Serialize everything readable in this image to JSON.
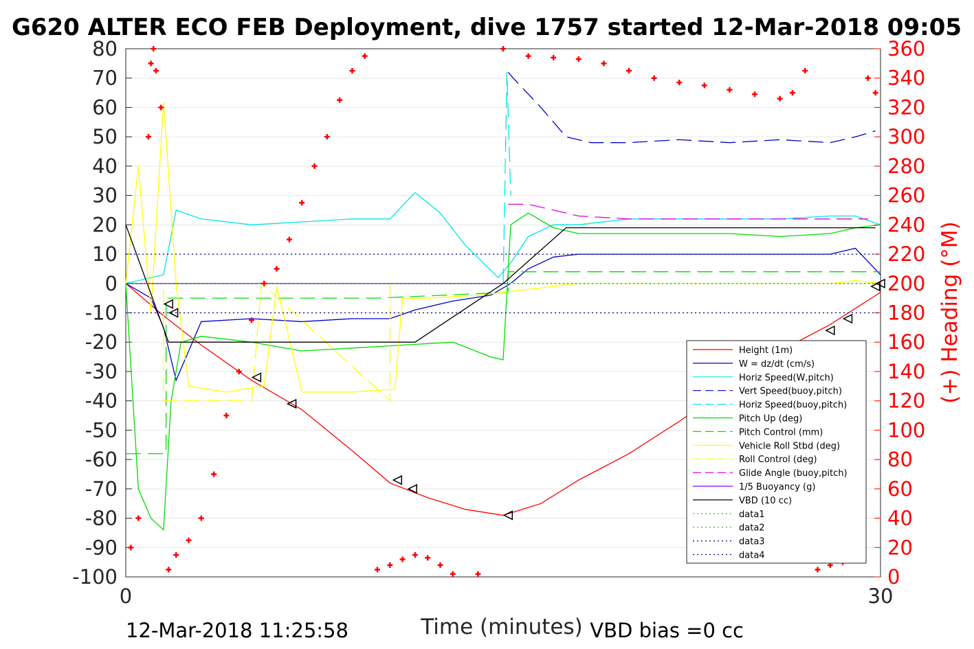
{
  "chart_data": {
    "type": "line",
    "title": "G620 ALTER ECO FEB Deployment, dive 1757 started 12-Mar-2018 09:05",
    "xlabel": "Time (minutes)",
    "ylabel_right": "(+) Heading (°M)",
    "xlim": [
      0,
      30
    ],
    "ylim": [
      -100,
      80
    ],
    "ylim_right": [
      0,
      360
    ],
    "x_ticks": [
      "0",
      "30"
    ],
    "y_ticks": [
      "80",
      "70",
      "60",
      "50",
      "40",
      "30",
      "20",
      "10",
      "0",
      "-10",
      "-20",
      "-30",
      "-40",
      "-50",
      "-60",
      "-70",
      "-80",
      "-90",
      "-100"
    ],
    "y_right_ticks": [
      "360",
      "340",
      "320",
      "300",
      "280",
      "260",
      "240",
      "220",
      "200",
      "180",
      "160",
      "140",
      "120",
      "100",
      "80",
      "60",
      "40",
      "20",
      "0"
    ],
    "grid": true,
    "legend_position": "lower-right",
    "footer_left": "12-Mar-2018 11:25:58",
    "footer_right": "VBD bias =0 cc",
    "series": [
      {
        "name": "Height (1m)",
        "color": "#ff0000",
        "style": "solid",
        "x": [
          0,
          1.5,
          3,
          5,
          7,
          9,
          10.5,
          12,
          13.5,
          15,
          16.5,
          18,
          20,
          22,
          24,
          26,
          28,
          30
        ],
        "y": [
          0,
          -11,
          -21,
          -33,
          -43,
          -57,
          -68,
          -73,
          -77,
          -79,
          -75,
          -67,
          -58,
          -47,
          -35,
          -23,
          -14,
          -3
        ]
      },
      {
        "name": "W = dz/dt (cm/s)",
        "color": "#0000cc",
        "style": "solid",
        "x": [
          0,
          1,
          1.5,
          2,
          3,
          5,
          7,
          9,
          10.5,
          11.5,
          13,
          14.5,
          15.3,
          16,
          17,
          18,
          20,
          22,
          24,
          26,
          28,
          29,
          30
        ],
        "y": [
          0,
          -5,
          -15,
          -33,
          -13,
          -12,
          -13,
          -12,
          -12,
          -9,
          -6,
          -4,
          0,
          5,
          9,
          10,
          10,
          10,
          10,
          10,
          10,
          12,
          3
        ]
      },
      {
        "name": "Horiz Speed(W,pitch)",
        "color": "#00e5e5",
        "style": "solid",
        "x": [
          0,
          1.5,
          2,
          3,
          5,
          7,
          9,
          10.5,
          11.5,
          12.5,
          13.5,
          14.8,
          15.3,
          16,
          17,
          18,
          20,
          22,
          24,
          26,
          28,
          29,
          30
        ],
        "y": [
          0,
          3,
          25,
          22,
          20,
          21,
          22,
          22,
          31,
          24,
          13,
          2,
          7,
          16,
          20,
          20,
          22,
          22,
          22,
          22,
          23,
          23,
          20
        ]
      },
      {
        "name": "Vert Speed(buoy,pitch)",
        "color": "#0000cc",
        "style": "dashed",
        "x": [
          15.2,
          15.4,
          16.5,
          17.5,
          18.5,
          20,
          22,
          24,
          26,
          28,
          29,
          29.8
        ],
        "y": [
          72,
          70,
          60,
          50,
          48,
          48,
          49,
          48,
          49,
          48,
          50,
          52
        ]
      },
      {
        "name": "Horiz Speed(buoy,pitch)",
        "color": "#00e5e5",
        "style": "dashed",
        "x": [
          15.0,
          15.15,
          15.3
        ],
        "y": [
          0,
          72,
          30
        ]
      },
      {
        "name": "Pitch Up (deg)",
        "color": "#00dd00",
        "style": "solid",
        "x": [
          0,
          0.5,
          1,
          1.5,
          1.8,
          2.2,
          3,
          5,
          7,
          9,
          11,
          13,
          14.5,
          15,
          15.3,
          16,
          17,
          18,
          20,
          22,
          24,
          26,
          28,
          29,
          30
        ],
        "y": [
          0,
          -70,
          -80,
          -84,
          -40,
          -20,
          -18,
          -20,
          -23,
          -22,
          -21,
          -20,
          -25,
          -26,
          20,
          24,
          19,
          17,
          17,
          17,
          17,
          16,
          17,
          19,
          20
        ]
      },
      {
        "name": "Pitch Control (mm)",
        "color": "#00dd00",
        "style": "dashed",
        "x": [
          0,
          1.6,
          1.6,
          5,
          10,
          15.2,
          15.2,
          20,
          25,
          30
        ],
        "y": [
          -58,
          -58,
          -5,
          -5,
          -5,
          -3,
          4,
          4,
          4,
          4
        ]
      },
      {
        "name": "Vehicle Roll Stbd (deg)",
        "color": "#ffff00",
        "style": "solid",
        "x": [
          0,
          0.5,
          1,
          1.5,
          2,
          2.5,
          4,
          5.5,
          6,
          7,
          9,
          10.7,
          11,
          12,
          14,
          15,
          16,
          18,
          20,
          22,
          24,
          26,
          28,
          29,
          30
        ],
        "y": [
          0,
          40,
          -10,
          62,
          0,
          -35,
          -37,
          -35,
          -1,
          -37,
          -37,
          -36,
          -5,
          -5,
          -4,
          -3,
          -2,
          0,
          0,
          0,
          0,
          0,
          0,
          1,
          0
        ]
      },
      {
        "name": "Roll Control (deg)",
        "color": "#ffff00",
        "style": "dashed",
        "x": [
          0,
          1.5,
          1.5,
          5,
          5.4,
          10.5,
          10.5,
          15,
          20,
          30
        ],
        "y": [
          0,
          0,
          -40,
          -40,
          0,
          -40,
          0,
          0,
          0,
          0
        ]
      },
      {
        "name": "Glide Angle (buoy,pitch)",
        "color": "#dd00dd",
        "style": "dashed",
        "x": [
          15.2,
          16,
          18,
          20,
          22,
          24,
          26,
          28,
          29.5
        ],
        "y": [
          27,
          27,
          23,
          22,
          22,
          22,
          22,
          22,
          22
        ]
      },
      {
        "name": "1/5 Buoyancy (g)",
        "color": "#8800ff",
        "style": "solid",
        "x": [
          0,
          5,
          10,
          15,
          15.2
        ],
        "y": [
          0,
          0,
          0,
          0,
          0
        ]
      },
      {
        "name": "VBD (10 cc)",
        "color": "#000000",
        "style": "solid",
        "x": [
          0,
          1.7,
          5,
          11.5,
          15,
          17.5,
          25,
          29.8
        ],
        "y": [
          20,
          -20,
          -20,
          -20,
          0,
          19,
          19,
          19
        ]
      },
      {
        "name": "data1",
        "color": "#00cc00",
        "style": "dotted",
        "x": [
          0,
          30
        ],
        "y": [
          0,
          0
        ]
      },
      {
        "name": "data2",
        "color": "#00cc00",
        "style": "dotted",
        "x": [
          0,
          30
        ],
        "y": [
          0,
          0
        ]
      },
      {
        "name": "data3",
        "color": "#000088",
        "style": "dotted",
        "x": [
          0,
          30
        ],
        "y": [
          10,
          10
        ]
      },
      {
        "name": "data4",
        "color": "#000088",
        "style": "dotted",
        "x": [
          0,
          30
        ],
        "y": [
          -10,
          -10
        ]
      }
    ],
    "heading_points_right_axis": {
      "color": "#ff0000",
      "x": [
        0.2,
        0.5,
        0.9,
        1.0,
        1.1,
        1.2,
        1.4,
        1.7,
        2.0,
        2.5,
        3.0,
        3.5,
        4.0,
        4.5,
        5.0,
        5.5,
        6.0,
        6.5,
        7.0,
        7.5,
        8.0,
        8.5,
        9.0,
        9.5,
        10.0,
        10.5,
        11.0,
        11.5,
        12.0,
        12.5,
        13.0,
        14.0,
        15.0,
        16.0,
        17.0,
        18.0,
        19.0,
        20.0,
        21.0,
        22.0,
        23.0,
        24.0,
        25.0,
        26.0,
        26.5,
        27.0,
        27.5,
        28.0,
        28.5,
        29.0,
        29.5,
        29.8
      ],
      "y": [
        20,
        40,
        300,
        350,
        360,
        345,
        320,
        5,
        15,
        25,
        40,
        70,
        110,
        140,
        175,
        200,
        210,
        230,
        255,
        280,
        300,
        325,
        345,
        355,
        5,
        8,
        12,
        15,
        13,
        8,
        2,
        2,
        360,
        355,
        354,
        353,
        350,
        345,
        340,
        337,
        335,
        332,
        329,
        326,
        330,
        345,
        5,
        8,
        10,
        12,
        340,
        330
      ]
    },
    "triangle_markers": {
      "x": [
        1.7,
        1.9,
        5.2,
        6.6,
        10.8,
        11.4,
        15.2,
        28.0,
        28.7,
        29.8,
        30.0
      ],
      "y": [
        -7,
        -10,
        -32,
        -41,
        -67,
        -70,
        -79,
        -16,
        -12,
        -1,
        0
      ]
    }
  },
  "legend_entries": [
    "Height (1m)",
    "W = dz/dt (cm/s)",
    "Horiz Speed(W,pitch)",
    "Vert Speed(buoy,pitch)",
    "Horiz Speed(buoy,pitch)",
    "Pitch Up (deg)",
    "Pitch Control (mm)",
    "Vehicle Roll Stbd (deg)",
    "Roll Control (deg)",
    "Glide Angle (buoy,pitch)",
    "1/5 Buoyancy (g)",
    "VBD (10 cc)",
    "data1",
    "data2",
    "data3",
    "data4"
  ]
}
